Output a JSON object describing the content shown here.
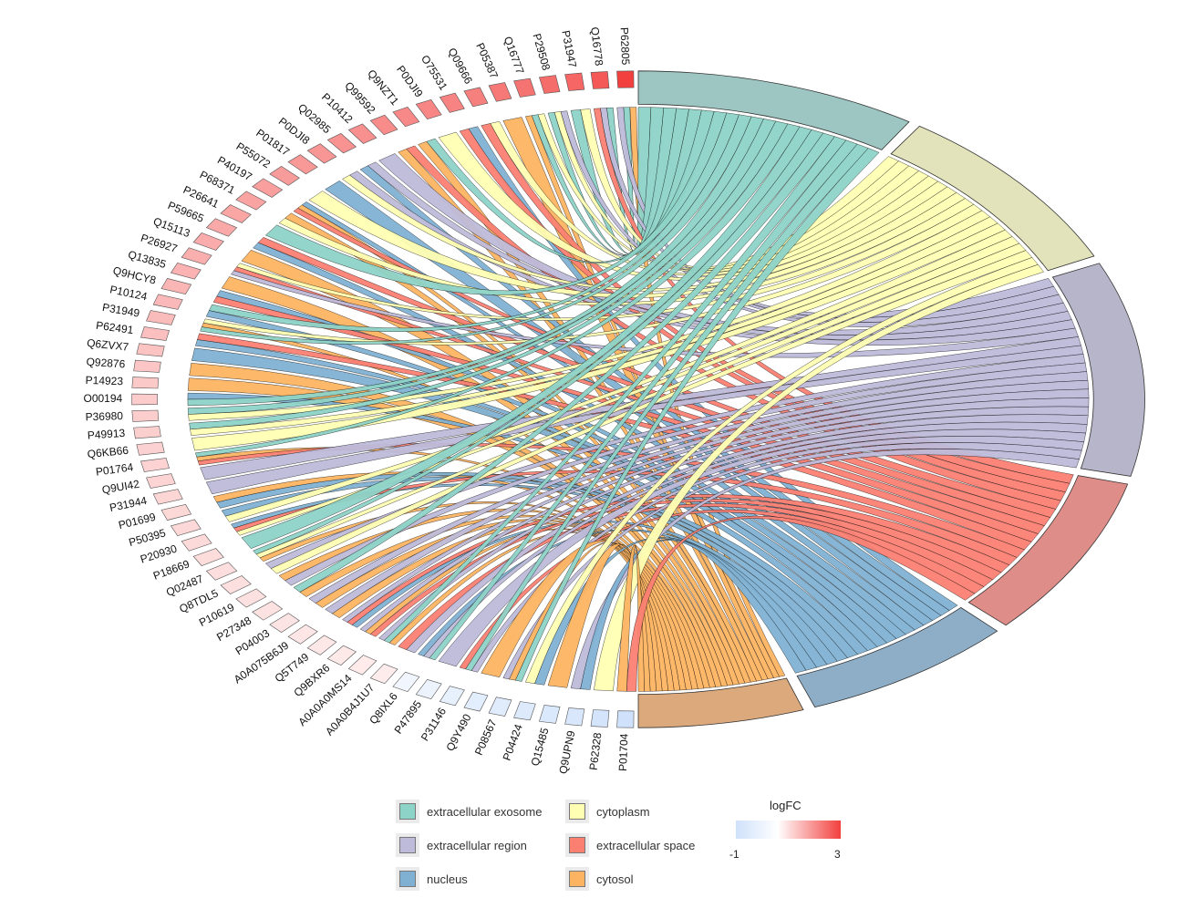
{
  "chart_data": {
    "type": "chord",
    "title": "",
    "genes": [
      {
        "id": "P62805",
        "logFC": 3.0
      },
      {
        "id": "Q16778",
        "logFC": 2.6
      },
      {
        "id": "P31947",
        "logFC": 2.4
      },
      {
        "id": "P29508",
        "logFC": 2.3
      },
      {
        "id": "Q16777",
        "logFC": 2.2
      },
      {
        "id": "P05387",
        "logFC": 2.1
      },
      {
        "id": "Q09666",
        "logFC": 2.0
      },
      {
        "id": "O75531",
        "logFC": 1.95
      },
      {
        "id": "P0DJI9",
        "logFC": 1.9
      },
      {
        "id": "Q9NZT1",
        "logFC": 1.85
      },
      {
        "id": "Q99592",
        "logFC": 1.8
      },
      {
        "id": "P10412",
        "logFC": 1.75
      },
      {
        "id": "Q02985",
        "logFC": 1.7
      },
      {
        "id": "P0DJI8",
        "logFC": 1.65
      },
      {
        "id": "P01817",
        "logFC": 1.6
      },
      {
        "id": "P55072",
        "logFC": 1.55
      },
      {
        "id": "P40197",
        "logFC": 1.5
      },
      {
        "id": "P68371",
        "logFC": 1.45
      },
      {
        "id": "P26641",
        "logFC": 1.4
      },
      {
        "id": "P59665",
        "logFC": 1.35
      },
      {
        "id": "Q15113",
        "logFC": 1.3
      },
      {
        "id": "P26927",
        "logFC": 1.25
      },
      {
        "id": "Q13835",
        "logFC": 1.2
      },
      {
        "id": "Q9HCY8",
        "logFC": 1.15
      },
      {
        "id": "P10124",
        "logFC": 1.1
      },
      {
        "id": "P31949",
        "logFC": 1.05
      },
      {
        "id": "P62491",
        "logFC": 1.0
      },
      {
        "id": "Q6ZVX7",
        "logFC": 0.95
      },
      {
        "id": "Q92876",
        "logFC": 0.9
      },
      {
        "id": "P14923",
        "logFC": 0.85
      },
      {
        "id": "O00194",
        "logFC": 0.8
      },
      {
        "id": "P36980",
        "logFC": 0.78
      },
      {
        "id": "P49913",
        "logFC": 0.75
      },
      {
        "id": "Q6KB66",
        "logFC": 0.72
      },
      {
        "id": "P01764",
        "logFC": 0.7
      },
      {
        "id": "Q9UI42",
        "logFC": 0.68
      },
      {
        "id": "P31944",
        "logFC": 0.65
      },
      {
        "id": "P01699",
        "logFC": 0.62
      },
      {
        "id": "P50395",
        "logFC": 0.6
      },
      {
        "id": "P20930",
        "logFC": 0.58
      },
      {
        "id": "P18669",
        "logFC": 0.55
      },
      {
        "id": "Q02487",
        "logFC": 0.52
      },
      {
        "id": "Q8TDL5",
        "logFC": 0.5
      },
      {
        "id": "P10619",
        "logFC": 0.48
      },
      {
        "id": "P27348",
        "logFC": 0.45
      },
      {
        "id": "P04003",
        "logFC": 0.42
      },
      {
        "id": "A0A075B6J9",
        "logFC": 0.4
      },
      {
        "id": "Q5T749",
        "logFC": 0.38
      },
      {
        "id": "Q9BXR6",
        "logFC": 0.35
      },
      {
        "id": "A0A0A0MS14",
        "logFC": 0.32
      },
      {
        "id": "A0A0B4J1U7",
        "logFC": 0.3
      },
      {
        "id": "Q8IXL6",
        "logFC": -0.3
      },
      {
        "id": "P47895",
        "logFC": -0.4
      },
      {
        "id": "P31146",
        "logFC": -0.5
      },
      {
        "id": "Q9Y490",
        "logFC": -0.6
      },
      {
        "id": "P08567",
        "logFC": -0.65
      },
      {
        "id": "P04424",
        "logFC": -0.7
      },
      {
        "id": "Q15485",
        "logFC": -0.75
      },
      {
        "id": "Q9UPN9",
        "logFC": -0.8
      },
      {
        "id": "P62328",
        "logFC": -0.9
      },
      {
        "id": "P01704",
        "logFC": -1.0
      }
    ],
    "terms": [
      {
        "name": "extracellular exosome",
        "color": "#8dd3c7",
        "band": "#9dc5c1"
      },
      {
        "name": "cytoplasm",
        "color": "#ffffb3",
        "band": "#e3e3bb"
      },
      {
        "name": "extracellular region",
        "color": "#bebada",
        "band": "#b7b5c9"
      },
      {
        "name": "extracellular space",
        "color": "#fb8072",
        "band": "#de8d88"
      },
      {
        "name": "nucleus",
        "color": "#80b1d3",
        "band": "#8eaec7"
      },
      {
        "name": "cytosol",
        "color": "#fdb462",
        "band": "#dba97c"
      }
    ],
    "logFC_range": [
      -1,
      3
    ]
  },
  "legend": {
    "items": [
      {
        "label": "extracellular exosome",
        "color": "#8dd3c7"
      },
      {
        "label": "cytoplasm",
        "color": "#ffffb3"
      },
      {
        "label": "extracellular region",
        "color": "#bebada"
      },
      {
        "label": "extracellular space",
        "color": "#fb8072"
      },
      {
        "label": "nucleus",
        "color": "#80b1d3"
      },
      {
        "label": "cytosol",
        "color": "#fdb462"
      }
    ],
    "fc_title": "logFC",
    "fc_min": "-1",
    "fc_max": "3"
  }
}
